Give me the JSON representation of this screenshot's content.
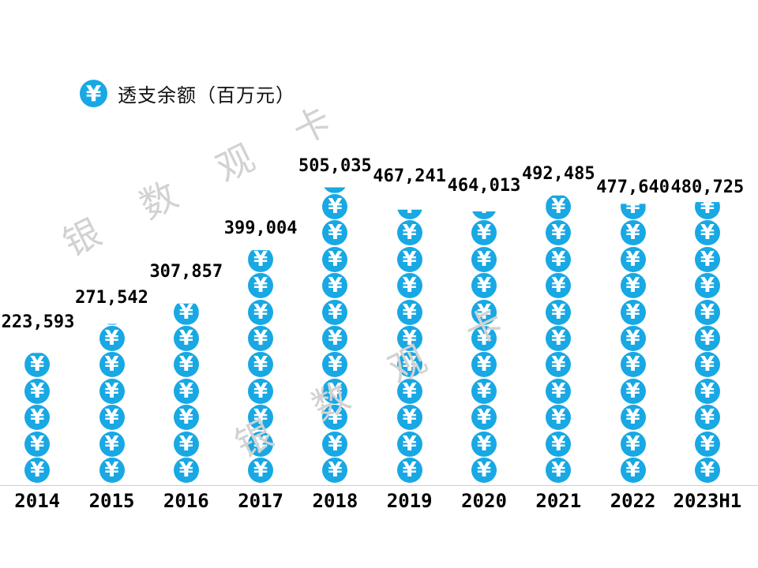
{
  "legend": {
    "label": "透支余额（百万元）",
    "icon": "yen-coin-icon"
  },
  "watermark": {
    "text": "银数观卡",
    "color": "#d2d2d2"
  },
  "colors": {
    "coin_blue": "#18a8e4",
    "axis_gray": "#cfcfcf",
    "watermark_gray": "#d2d2d2",
    "label_black": "#000000"
  },
  "chart_data": {
    "type": "bar",
    "subtype": "pictorial-coin-stack",
    "title": "透支余额（百万元）",
    "categories": [
      "2014",
      "2015",
      "2016",
      "2017",
      "2018",
      "2019",
      "2020",
      "2021",
      "2022",
      "2023H1"
    ],
    "values": [
      223593,
      271542,
      307857,
      399004,
      505035,
      467241,
      464013,
      492485,
      477640,
      480725
    ],
    "value_labels": [
      "223,593",
      "271,542",
      "307,857",
      "399,004",
      "505,035",
      "467,241",
      "464,013",
      "492,485",
      "477,640",
      "480,725"
    ],
    "series_name": "透支余额",
    "unit": "百万元",
    "symbol": "¥",
    "unit_per_symbol": 45000,
    "xlabel": "",
    "ylabel": "",
    "ylim": [
      0,
      540000
    ],
    "grid": false,
    "legend_position": "top-left"
  }
}
